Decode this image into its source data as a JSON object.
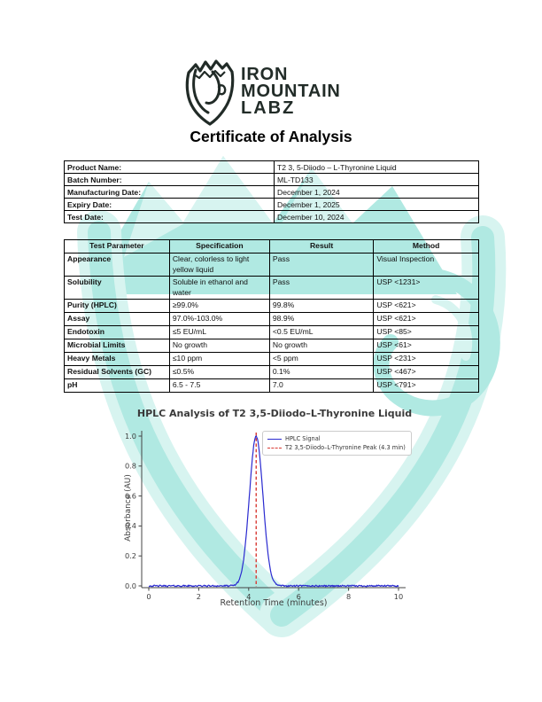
{
  "brand": {
    "line1": "IRON",
    "line2": "MOUNTAIN",
    "line3": "LABZ"
  },
  "title": "Certificate of Analysis",
  "product_info": {
    "rows": [
      {
        "label": "Product Name:",
        "value": "T2 3, 5-Diiodo – L-Thyronine Liquid"
      },
      {
        "label": "Batch Number:",
        "value": "ML-TD133"
      },
      {
        "label": "Manufacturing Date:",
        "value": "December 1, 2024"
      },
      {
        "label": "Expiry Date:",
        "value": "December 1, 2025"
      },
      {
        "label": "Test Date:",
        "value": "December 10, 2024"
      }
    ]
  },
  "test_table": {
    "headers": [
      "Test Parameter",
      "Specification",
      "Result",
      "Method"
    ],
    "rows": [
      {
        "parameter": "Appearance",
        "specification": "Clear, colorless to light yellow liquid",
        "result": "Pass",
        "method": "Visual Inspection"
      },
      {
        "parameter": "Solubility",
        "specification": "Soluble in ethanol and water",
        "result": "Pass",
        "method": "USP <1231>"
      },
      {
        "parameter": "Purity (HPLC)",
        "specification": "≥99.0%",
        "result": "99.8%",
        "method": "USP <621>"
      },
      {
        "parameter": "Assay",
        "specification": "97.0%-103.0%",
        "result": "98.9%",
        "method": "USP <621>"
      },
      {
        "parameter": "Endotoxin",
        "specification": "≤5 EU/mL",
        "result": "<0.5 EU/mL",
        "method": "USP <85>"
      },
      {
        "parameter": "Microbial Limits",
        "specification": "No growth",
        "result": "No growth",
        "method": "USP <61>"
      },
      {
        "parameter": "Heavy Metals",
        "specification": "≤10 ppm",
        "result": "<5 ppm",
        "method": "USP <231>"
      },
      {
        "parameter": "Residual Solvents (GC)",
        "specification": "≤0.5%",
        "result": "0.1%",
        "method": "USP <467>"
      },
      {
        "parameter": "pH",
        "specification": "6.5 - 7.5",
        "result": "7.0",
        "method": "USP <791>"
      }
    ]
  },
  "chart_data": {
    "type": "line",
    "title": "HPLC Analysis of T2 3,5-Diiodo–L-Thyronine Liquid",
    "xlabel": "Retention Time (minutes)",
    "ylabel": "Absorbance (AU)",
    "xlim": [
      0,
      10
    ],
    "ylim": [
      0,
      1.02
    ],
    "xticks": [
      0,
      2,
      4,
      6,
      8,
      10
    ],
    "yticks": [
      "0.0",
      "0.2",
      "0.4",
      "0.6",
      "0.8",
      "1.0"
    ],
    "grid": false,
    "legend_position": "upper right",
    "series": [
      {
        "name": "HPLC Signal",
        "shape": "gaussian_peak",
        "peak_center_min": 4.3,
        "peak_height_au": 1.0,
        "peak_sigma_min": 0.27,
        "baseline_au": 0.0,
        "baseline_noise_au": 0.005,
        "color": "#2a2ad0"
      }
    ],
    "annotations": [
      {
        "type": "vline",
        "x": 4.3,
        "style": "dashed",
        "color": "#d93a34",
        "label": "T2 3,5-Diiodo–L-Thyronine Peak (4.3 min)"
      }
    ],
    "legend": {
      "entries": [
        "HPLC Signal",
        "T2 3,5-Diiodo–L-Thyronine Peak (4.3 min)"
      ]
    }
  },
  "colors": {
    "logo_dark": "#212b27",
    "watermark_teal": "#9be3da",
    "watermark_teal_light": "#cdf1ec",
    "signal_blue": "#2a2ad0",
    "peak_red": "#d93a34",
    "axis_gray": "#444444"
  }
}
